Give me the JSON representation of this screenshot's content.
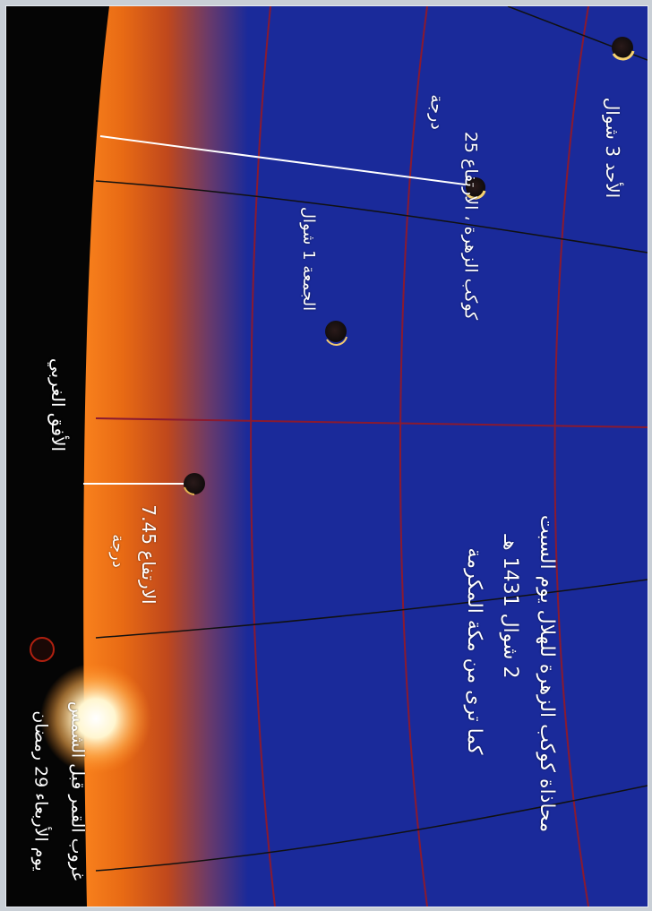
{
  "title": {
    "line1": "محاذاة كوكب الزهرة للهلال يوم السبت",
    "line2": "2 شوال 1431 هـ",
    "line3": "كما ترى من مكة المكرمة"
  },
  "labels": {
    "sunday": "الأحد 3 شوال",
    "venus_line1": "كوكب الزهرة ، الارتفاع 25",
    "venus_line2": "درجة",
    "friday": "الجمعة 1 شوال",
    "altitude_line1": "الارتفاع 7.45",
    "altitude_line2": "درجة",
    "horizon": "الأفق الغربي",
    "moonset_line1": "غروب القمر قبل الشمس",
    "moonset_line2": "يوم الأربعاء 29 رمضان"
  },
  "colors": {
    "sky": "#1a2a9a",
    "horizon_glow": "#e06010",
    "ground": "#050505",
    "grid": "#8a1a30",
    "text": "#ffffff"
  },
  "icons": {
    "moon": "crescent-moon-icon",
    "venus": "planet-icon",
    "sun": "sun-glow-icon"
  }
}
